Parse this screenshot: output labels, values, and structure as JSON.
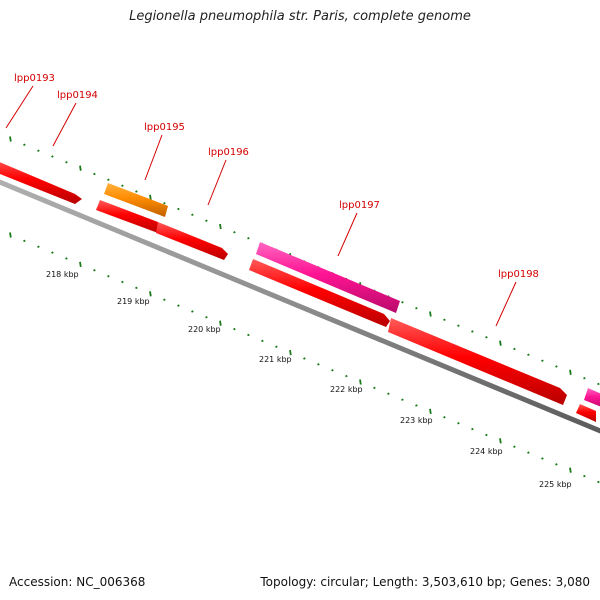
{
  "title": "Legionella pneumophila str. Paris, complete genome",
  "footer": {
    "accession": "Accession: NC_006368",
    "summary": "Topology: circular; Length: 3,503,610 bp; Genes: 3,080"
  },
  "colors": {
    "backbone": "#8c8c8c",
    "gene_red": "#ff0000",
    "gene_orange": "#ff8c00",
    "gene_magenta": "#ff1493",
    "label_text": "#d40000",
    "gc_ticks": "#1a7a1a"
  },
  "gene_labels": [
    "lpp0193",
    "lpp0194",
    "lpp0195",
    "lpp0196",
    "lpp0197",
    "lpp0198"
  ],
  "scale_labels": [
    "218 kbp",
    "219 kbp",
    "220 kbp",
    "221 kbp",
    "222 kbp",
    "223 kbp",
    "224 kbp",
    "225 kbp"
  ]
}
